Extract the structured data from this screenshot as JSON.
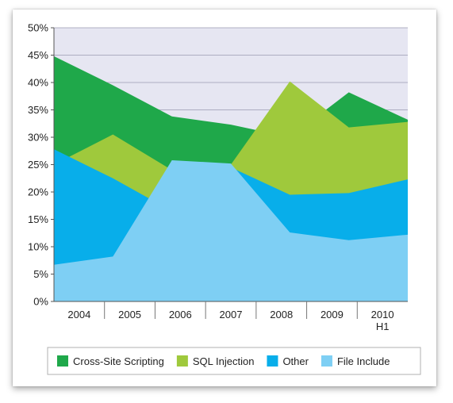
{
  "chart_data": {
    "type": "area",
    "title": "",
    "xlabel": "",
    "ylabel": "",
    "categories": [
      "2004",
      "2005",
      "2006",
      "2007",
      "2008",
      "2009",
      "2010 H1"
    ],
    "tick_lines": [
      [
        "2004"
      ],
      [
        "2005"
      ],
      [
        "2006"
      ],
      [
        "2007"
      ],
      [
        "2008"
      ],
      [
        "2009"
      ],
      [
        "2010",
        "H1"
      ]
    ],
    "y_ticks": [
      "0%",
      "5%",
      "10%",
      "15%",
      "20%",
      "25%",
      "30%",
      "35%",
      "40%",
      "45%",
      "50%"
    ],
    "ylim": [
      0,
      50
    ],
    "y_unit": "%",
    "grid": true,
    "background": "#e6e6f2",
    "legend_position": "bottom",
    "series": [
      {
        "name": "Cross-Site Scripting",
        "color": "#1fa84a",
        "values": [
          44.8,
          39.5,
          33.8,
          32.3,
          30.0,
          38.2,
          33.2
        ]
      },
      {
        "name": "SQL Injection",
        "color": "#9fc93c",
        "values": [
          25.0,
          30.5,
          24.0,
          25.0,
          40.2,
          31.8,
          32.8
        ]
      },
      {
        "name": "Other",
        "color": "#08aeea",
        "values": [
          27.8,
          22.5,
          16.5,
          24.5,
          19.5,
          19.8,
          22.3
        ]
      },
      {
        "name": "File Include",
        "color": "#7ecff4",
        "values": [
          6.7,
          8.2,
          25.8,
          25.2,
          12.6,
          11.2,
          12.2
        ]
      }
    ]
  }
}
